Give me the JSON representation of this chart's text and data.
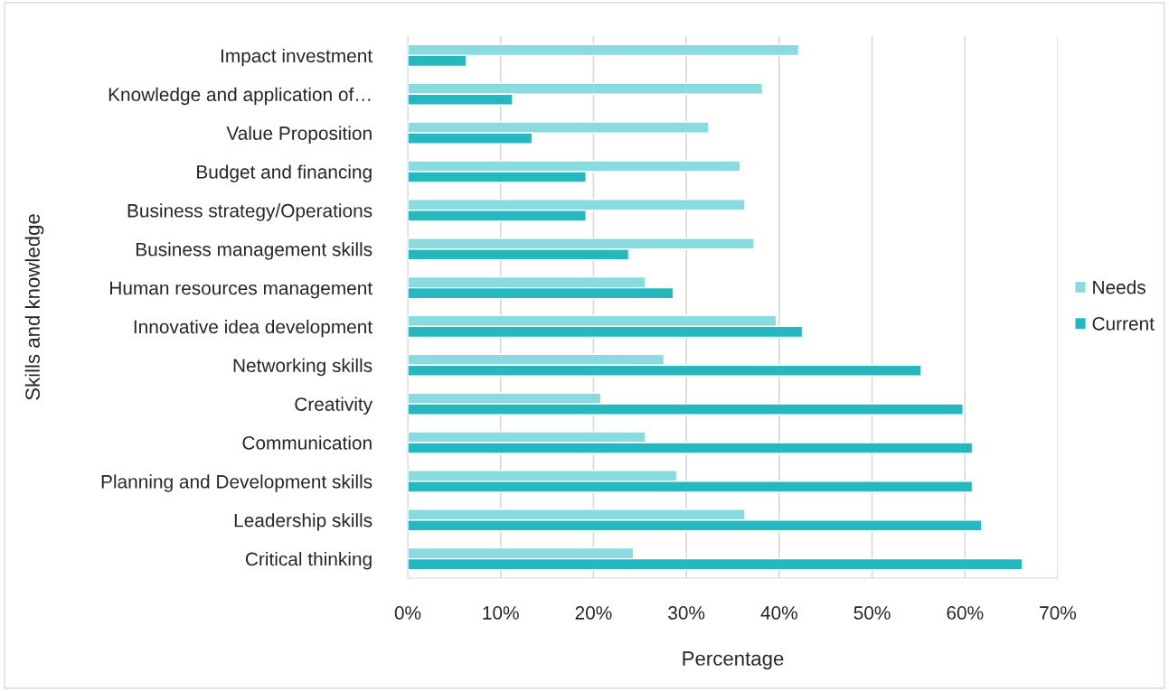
{
  "chart_data": {
    "type": "bar",
    "orientation": "horizontal",
    "xlabel": "Percentage",
    "ylabel": "Skills and knowledge",
    "categories": [
      "Impact investment",
      "Knowledge and application of…",
      "Value Proposition",
      "Budget and financing",
      "Business strategy/Operations",
      "Business management skills",
      "Human resources management",
      "Innovative idea development",
      "Networking skills",
      "Creativity",
      "Communication",
      "Planning and Development skills",
      "Leadership skills",
      "Critical thinking"
    ],
    "series": [
      {
        "name": "Needs",
        "color": "#8adbe0",
        "values": [
          42.1,
          38.2,
          32.4,
          35.8,
          36.3,
          37.3,
          25.6,
          39.7,
          27.6,
          20.8,
          25.6,
          29.0,
          36.3,
          24.3
        ]
      },
      {
        "name": "Current",
        "color": "#26b8bf",
        "values": [
          6.3,
          11.3,
          13.4,
          19.2,
          19.2,
          23.8,
          28.6,
          42.5,
          55.3,
          59.8,
          60.8,
          60.8,
          61.8,
          66.2
        ]
      }
    ],
    "xlim": [
      0,
      70
    ],
    "xticks": [
      {
        "value": 0,
        "label": "0%"
      },
      {
        "value": 10,
        "label": "10%"
      },
      {
        "value": 20,
        "label": "20%"
      },
      {
        "value": 30,
        "label": "30%"
      },
      {
        "value": 40,
        "label": "40%"
      },
      {
        "value": 50,
        "label": "50%"
      },
      {
        "value": 60,
        "label": "60%"
      },
      {
        "value": 70,
        "label": "70%"
      }
    ],
    "grid": "x",
    "legend": "right"
  }
}
